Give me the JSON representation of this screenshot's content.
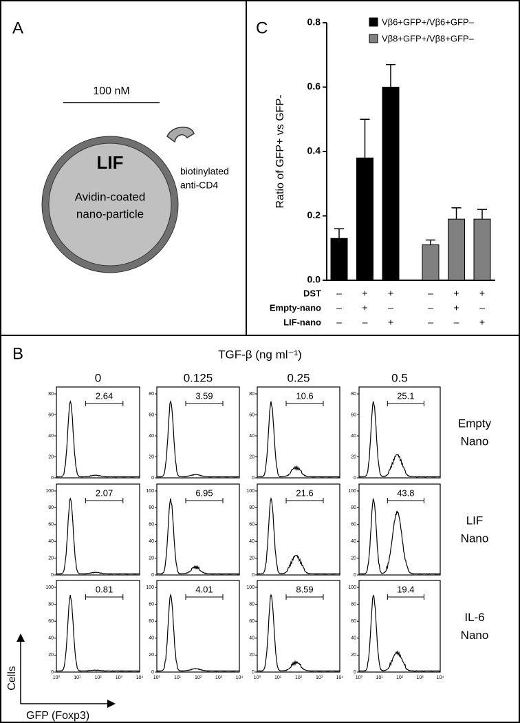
{
  "panel_a": {
    "label": "A",
    "scale_bar": "100 nM",
    "particle": "LIF",
    "core_lines": [
      "Avidin-coated",
      "nano-particle"
    ],
    "antibody_lines": [
      "biotinylated",
      "anti-CD4"
    ]
  },
  "chart_data": {
    "type": "bar",
    "label": "C",
    "ylabel": "Ratio of GFP+ vs GFP-",
    "ylim": [
      0,
      0.8
    ],
    "yticks": [
      {
        "value": 0,
        "label": "0.0"
      },
      0.2,
      0.4,
      0.6,
      0.8
    ],
    "legend": "upper right",
    "series": [
      {
        "name": "Vβ6+GFP+/Vβ6+GFP–",
        "color": "#000000",
        "values": [
          0.13,
          0.38,
          0.6
        ],
        "errors": [
          0.03,
          0.12,
          0.07
        ]
      },
      {
        "name": "Vβ8+GFP+/Vβ8+GFP–",
        "color": "#808080",
        "values": [
          0.11,
          0.19,
          0.19
        ],
        "errors": [
          0.015,
          0.035,
          0.03
        ]
      }
    ],
    "conditions": [
      {
        "name": "DST",
        "values": [
          "–",
          "+",
          "+"
        ]
      },
      {
        "name": "Empty-nano",
        "values": [
          "–",
          "+",
          "–"
        ]
      },
      {
        "name": "LIF-nano",
        "values": [
          "–",
          "–",
          "+"
        ]
      }
    ]
  },
  "panel_b": {
    "label": "B",
    "title": "TGF-β (ng ml⁻¹)",
    "columns": [
      0,
      0.125,
      0.25,
      0.5
    ],
    "xticks": [
      "10⁰",
      "10¹",
      "10²",
      "10³",
      "10⁴"
    ],
    "xlabel": "GFP (Foxp3)",
    "ylabel": "Cells",
    "rows": [
      {
        "name_lines": [
          "Empty",
          "Nano"
        ],
        "yticks": [
          0,
          20,
          40,
          60,
          80
        ],
        "gates": [
          2.64,
          3.59,
          10.6,
          25.1
        ]
      },
      {
        "name_lines": [
          "LIF",
          "Nano"
        ],
        "yticks": [
          0,
          20,
          40,
          60,
          80,
          100
        ],
        "gates": [
          2.07,
          6.95,
          21.6,
          43.8
        ]
      },
      {
        "name_lines": [
          "IL-6",
          "Nano"
        ],
        "yticks": [
          0,
          20,
          40,
          60,
          80,
          100
        ],
        "gates": [
          0.81,
          4.01,
          8.59,
          19.4
        ]
      }
    ]
  }
}
